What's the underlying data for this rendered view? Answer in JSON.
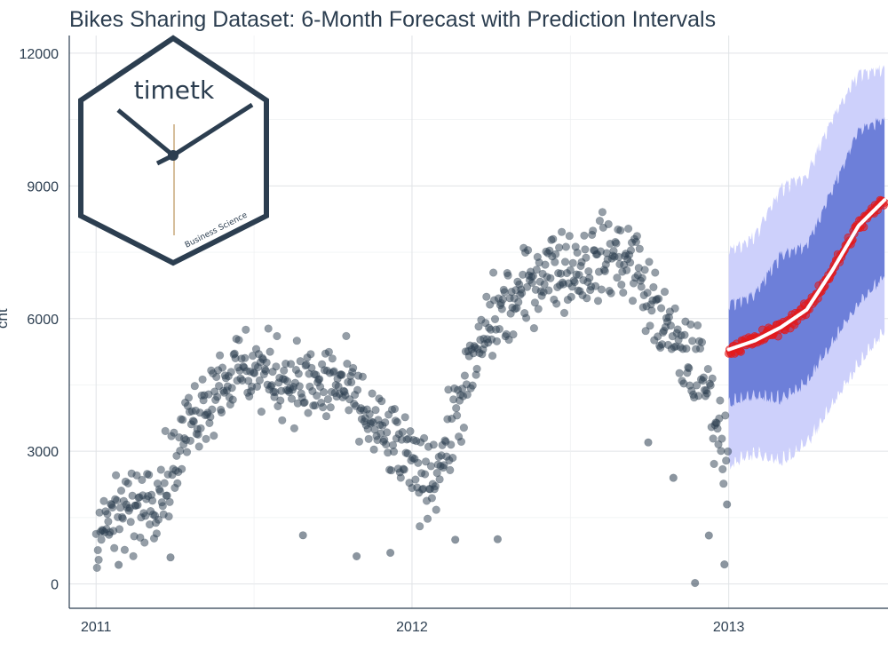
{
  "chart_data": {
    "type": "scatter",
    "title": "Bikes Sharing Dataset: 6-Month Forecast with Prediction Intervals",
    "xlabel": "",
    "ylabel": "cnt",
    "x_ticks": [
      "2011",
      "2012",
      "2013"
    ],
    "y_ticks": [
      0,
      3000,
      6000,
      9000,
      12000
    ],
    "xlim": [
      "2010-12-01",
      "2013-07-04"
    ],
    "ylim": [
      -550,
      12400
    ],
    "grid": true,
    "colors": {
      "actual": "#2c3e50",
      "forecast_points": "#e31a1c",
      "forecast_line": "#ffffff",
      "interval_95": "#cdd0fb",
      "interval_80": "#6d7fd9",
      "title": "#2c3e50"
    },
    "series": [
      {
        "kind": "actual",
        "x_start": "2011-01-01",
        "x_end": "2012-12-31",
        "points": [
          [
            0,
            985
          ],
          [
            15,
            1400
          ],
          [
            31,
            1600
          ],
          [
            45,
            1700
          ],
          [
            59,
            2000
          ],
          [
            75,
            2200
          ],
          [
            90,
            2700
          ],
          [
            105,
            3500
          ],
          [
            120,
            4000
          ],
          [
            135,
            4400
          ],
          [
            150,
            4700
          ],
          [
            165,
            4800
          ],
          [
            181,
            4900
          ],
          [
            196,
            4700
          ],
          [
            212,
            4700
          ],
          [
            227,
            4600
          ],
          [
            242,
            4500
          ],
          [
            258,
            4400
          ],
          [
            273,
            4600
          ],
          [
            288,
            4400
          ],
          [
            304,
            4000
          ],
          [
            319,
            3600
          ],
          [
            334,
            3300
          ],
          [
            349,
            3100
          ],
          [
            365,
            2600
          ],
          [
            380,
            2400
          ],
          [
            396,
            2700
          ],
          [
            410,
            3400
          ],
          [
            425,
            4400
          ],
          [
            440,
            5100
          ],
          [
            455,
            5900
          ],
          [
            470,
            6200
          ],
          [
            486,
            6400
          ],
          [
            501,
            6800
          ],
          [
            516,
            7100
          ],
          [
            531,
            7200
          ],
          [
            547,
            7100
          ],
          [
            562,
            7200
          ],
          [
            577,
            7300
          ],
          [
            592,
            7400
          ],
          [
            608,
            7400
          ],
          [
            623,
            7300
          ],
          [
            638,
            6400
          ],
          [
            653,
            6000
          ],
          [
            669,
            5400
          ],
          [
            684,
            5100
          ],
          [
            699,
            4800
          ],
          [
            714,
            3900
          ],
          [
            730,
            2700
          ]
        ],
        "outliers": [
          [
            26,
            431
          ],
          [
            86,
            600
          ],
          [
            239,
            1100
          ],
          [
            301,
            627
          ],
          [
            340,
            705
          ],
          [
            415,
            1000
          ],
          [
            464,
            1013
          ],
          [
            638,
            3200
          ],
          [
            667,
            2400
          ],
          [
            692,
            22
          ],
          [
            708,
            1096
          ],
          [
            726,
            441
          ],
          [
            729,
            1800
          ]
        ]
      },
      {
        "kind": "forecast",
        "x_start": "2013-01-01",
        "x_end": "2013-06-30",
        "mean": [
          [
            0,
            5300
          ],
          [
            30,
            5500
          ],
          [
            60,
            5800
          ],
          [
            90,
            6200
          ],
          [
            120,
            7100
          ],
          [
            150,
            8100
          ],
          [
            181,
            8700
          ]
        ],
        "band_80": [
          [
            0,
            4100,
            6300
          ],
          [
            30,
            4300,
            6500
          ],
          [
            60,
            4200,
            7400
          ],
          [
            90,
            4600,
            7600
          ],
          [
            120,
            5500,
            8900
          ],
          [
            150,
            6400,
            10200
          ],
          [
            181,
            7000,
            10500
          ]
        ],
        "band_95": [
          [
            0,
            2700,
            7500
          ],
          [
            30,
            3000,
            7800
          ],
          [
            60,
            2800,
            8900
          ],
          [
            90,
            3200,
            9200
          ],
          [
            120,
            4100,
            10500
          ],
          [
            150,
            5000,
            11500
          ],
          [
            181,
            5800,
            11600
          ]
        ]
      }
    ]
  }
}
